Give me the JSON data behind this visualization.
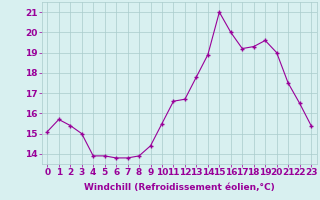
{
  "x": [
    0,
    1,
    2,
    3,
    4,
    5,
    6,
    7,
    8,
    9,
    10,
    11,
    12,
    13,
    14,
    15,
    16,
    17,
    18,
    19,
    20,
    21,
    22,
    23
  ],
  "y": [
    15.1,
    15.7,
    15.4,
    15.0,
    13.9,
    13.9,
    13.8,
    13.8,
    13.9,
    14.4,
    15.5,
    16.6,
    16.7,
    17.8,
    18.9,
    21.0,
    20.0,
    19.2,
    19.3,
    19.6,
    19.0,
    17.5,
    16.5,
    15.4
  ],
  "line_color": "#990099",
  "marker": "+",
  "bg_color": "#d8f0f0",
  "grid_color": "#aacccc",
  "xlabel": "Windchill (Refroidissement éolien,°C)",
  "xlabel_color": "#990099",
  "tick_color": "#990099",
  "ylim": [
    13.5,
    21.5
  ],
  "xlim": [
    -0.5,
    23.5
  ],
  "yticks": [
    14,
    15,
    16,
    17,
    18,
    19,
    20,
    21
  ],
  "xticks": [
    0,
    1,
    2,
    3,
    4,
    5,
    6,
    7,
    8,
    9,
    10,
    11,
    12,
    13,
    14,
    15,
    16,
    17,
    18,
    19,
    20,
    21,
    22,
    23
  ],
  "font_size": 6.5,
  "label_font_size": 6.5
}
